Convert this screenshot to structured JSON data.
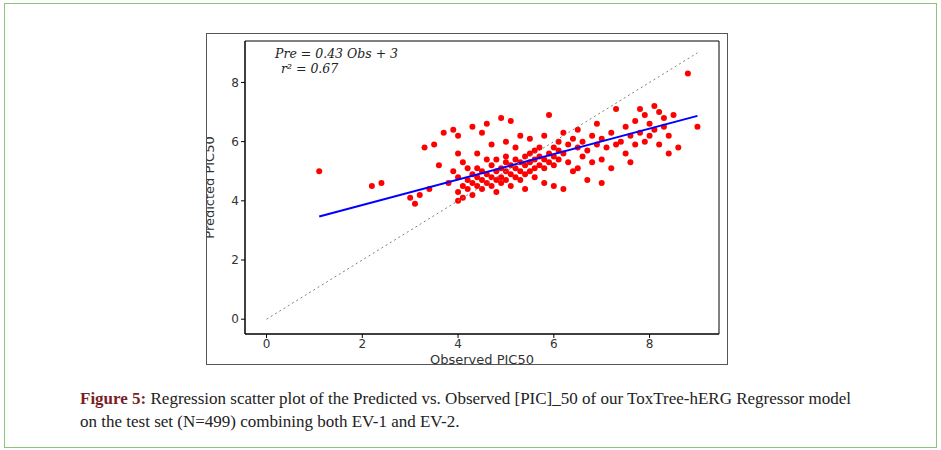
{
  "chart_data": {
    "type": "scatter",
    "x_label": "Observed PIC50",
    "y_label": "Predicted PIC50",
    "annotations": [
      "Pre = 0.43 Obs + 3",
      "r² = 0.67"
    ],
    "caption": {
      "label": "Figure 5:",
      "text": "Regression scatter plot of the Predicted vs. Observed [PIC]_50 of our ToxTree-hERG Regressor model on the test set (N=499) combining both EV-1 and EV-2."
    },
    "xlim": [
      -0.45,
      9.45
    ],
    "ylim": [
      -0.5,
      9.4
    ],
    "xticks": [
      0,
      2,
      4,
      6,
      8
    ],
    "yticks": [
      0,
      2,
      4,
      6,
      8
    ],
    "grid": false,
    "series": [
      {
        "type": "scatter",
        "color": "#ff0000",
        "marker": "circle",
        "x": [
          1.1,
          2.2,
          2.4,
          3.0,
          3.1,
          3.2,
          3.3,
          3.5,
          3.6,
          3.7,
          3.8,
          3.9,
          3.9,
          4.0,
          4.0,
          4.0,
          4.0,
          4.1,
          4.1,
          4.1,
          4.2,
          4.2,
          4.2,
          4.3,
          4.3,
          4.3,
          4.3,
          4.4,
          4.4,
          4.4,
          4.5,
          4.5,
          4.5,
          4.5,
          4.6,
          4.6,
          4.6,
          4.6,
          4.7,
          4.7,
          4.7,
          4.7,
          4.8,
          4.8,
          4.8,
          4.8,
          4.9,
          4.9,
          4.9,
          4.9,
          5.0,
          5.0,
          5.0,
          5.0,
          5.1,
          5.1,
          5.1,
          5.1,
          5.2,
          5.2,
          5.2,
          5.2,
          5.3,
          5.3,
          5.3,
          5.3,
          5.4,
          5.4,
          5.4,
          5.4,
          5.5,
          5.5,
          5.5,
          5.5,
          5.6,
          5.6,
          5.6,
          5.7,
          5.7,
          5.7,
          5.8,
          5.8,
          5.8,
          5.9,
          5.9,
          5.9,
          6.0,
          6.0,
          6.0,
          6.0,
          6.1,
          6.1,
          6.1,
          6.2,
          6.2,
          6.2,
          6.3,
          6.3,
          6.4,
          6.4,
          6.5,
          6.5,
          6.6,
          6.6,
          6.7,
          6.7,
          6.8,
          6.8,
          6.9,
          7.0,
          7.0,
          7.0,
          7.1,
          7.2,
          7.2,
          7.3,
          7.3,
          7.4,
          7.5,
          7.5,
          7.6,
          7.7,
          7.7,
          7.8,
          7.8,
          7.9,
          7.9,
          8.0,
          8.0,
          8.1,
          8.1,
          8.2,
          8.2,
          8.3,
          8.3,
          8.4,
          8.4,
          8.5,
          8.6,
          8.8,
          9.0,
          5.0,
          5.6,
          4.4,
          5.8,
          6.5,
          3.4,
          4.0,
          6.9,
          7.6
        ],
        "values": [
          5.0,
          4.5,
          4.6,
          4.1,
          3.9,
          4.2,
          5.8,
          5.9,
          5.2,
          6.3,
          4.6,
          6.4,
          5.0,
          6.2,
          4.8,
          4.3,
          4.0,
          4.5,
          5.3,
          4.1,
          4.7,
          5.1,
          4.4,
          6.5,
          4.9,
          4.6,
          4.2,
          5.6,
          4.8,
          4.5,
          6.3,
          5.0,
          4.7,
          4.4,
          6.6,
          5.4,
          4.9,
          4.6,
          5.2,
          4.8,
          4.5,
          5.9,
          5.0,
          4.7,
          5.4,
          4.3,
          6.8,
          5.1,
          4.8,
          4.6,
          5.3,
          5.0,
          4.7,
          6.0,
          6.7,
          5.2,
          4.9,
          4.5,
          5.4,
          5.1,
          4.8,
          5.8,
          6.2,
          5.3,
          5.0,
          4.7,
          5.5,
          5.2,
          4.9,
          4.4,
          5.6,
          5.3,
          5.0,
          6.1,
          5.4,
          5.1,
          4.8,
          5.5,
          5.2,
          5.8,
          5.4,
          5.1,
          4.6,
          6.9,
          5.6,
          5.3,
          5.5,
          5.8,
          5.2,
          4.5,
          5.7,
          6.0,
          5.4,
          4.4,
          6.3,
          5.6,
          5.9,
          5.3,
          6.1,
          5.0,
          5.8,
          6.4,
          5.5,
          6.0,
          4.7,
          5.7,
          6.2,
          5.3,
          5.9,
          4.6,
          6.1,
          5.4,
          5.8,
          6.3,
          5.1,
          7.1,
          5.9,
          6.0,
          5.6,
          6.5,
          6.2,
          5.9,
          6.7,
          7.1,
          6.3,
          6.0,
          6.9,
          6.6,
          6.2,
          7.2,
          6.4,
          7.0,
          5.9,
          6.8,
          6.5,
          5.6,
          6.2,
          6.9,
          5.8,
          8.3,
          6.5,
          5.5,
          5.7,
          5.1,
          6.2,
          5.1,
          4.4,
          5.6,
          6.6,
          5.3
        ]
      },
      {
        "type": "line",
        "color": "#0000ff",
        "line_style": "solid",
        "x": [
          1.1,
          9
        ],
        "values": [
          3.47,
          6.87
        ]
      },
      {
        "type": "line",
        "color": "#808080",
        "line_style": "dotted",
        "x": [
          0,
          9
        ],
        "values": [
          0,
          9
        ]
      }
    ]
  }
}
